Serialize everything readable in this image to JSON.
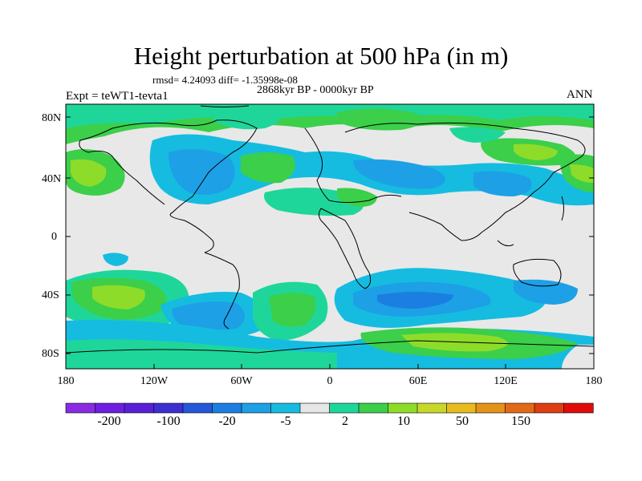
{
  "title": "Height perturbation at 500 hPa (in m)",
  "stats": "rmsd= 4.24093 diff= -1.35998e-08",
  "period": "2868kyr BP - 0000kyr BP",
  "experiment": "Expt = teWT1-tevta1",
  "season": "ANN",
  "lat_labels": [
    "80N",
    "40N",
    "0",
    "40S",
    "80S"
  ],
  "lon_labels": [
    "180",
    "120W",
    "60W",
    "0",
    "60E",
    "120E",
    "180"
  ],
  "colorbar": {
    "colors": [
      "#8a2be2",
      "#6f1fe0",
      "#5a20d8",
      "#3c2fcf",
      "#2458d8",
      "#1a7fe0",
      "#1da0e6",
      "#15bce0",
      "#e6e6e6",
      "#1fd69a",
      "#3bcf4a",
      "#8edc2a",
      "#c8d82a",
      "#e8bb1f",
      "#e59219",
      "#e26a16",
      "#df3d12",
      "#e00b0b"
    ],
    "labels": [
      "-200",
      "-100",
      "-20",
      "-5",
      "2",
      "10",
      "50",
      "150"
    ]
  },
  "map_colors": {
    "background": "#e8e8e8",
    "coast": "#000000"
  }
}
